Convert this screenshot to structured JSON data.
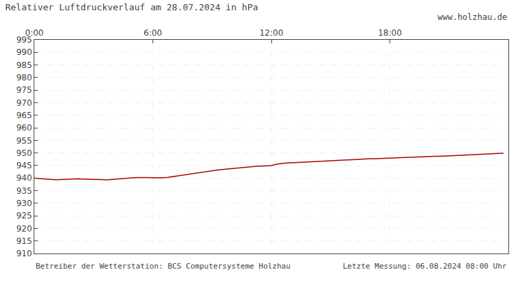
{
  "chart_data": {
    "type": "line",
    "title": "Relativer Luftdruckverlauf am 28.07.2024 in hPa",
    "annotations": [
      "www.holzhau.de",
      "Betreiber der Wetterstation: BCS Computersysteme Holzhau",
      "Letzte Messung: 06.08.2024 08:00 Uhr"
    ],
    "x": [
      0.0,
      0.25,
      0.5,
      0.75,
      1.0,
      1.25,
      1.5,
      1.75,
      2.0,
      2.25,
      2.5,
      2.75,
      3.0,
      3.25,
      3.5,
      3.75,
      4.0,
      4.25,
      4.5,
      4.75,
      5.0,
      5.25,
      5.5,
      5.75,
      6.0,
      6.25,
      6.5,
      6.75,
      7.0,
      7.25,
      7.5,
      7.75,
      8.0,
      8.25,
      8.5,
      8.75,
      9.0,
      9.25,
      9.5,
      9.75,
      10.0,
      10.25,
      10.5,
      10.75,
      11.0,
      11.25,
      11.5,
      11.75,
      12.0,
      12.25,
      12.5,
      12.75,
      13.0,
      13.25,
      13.5,
      13.75,
      14.0,
      14.25,
      14.5,
      14.75,
      15.0,
      15.25,
      15.5,
      15.75,
      16.0,
      16.25,
      16.5,
      16.75,
      17.0,
      17.25,
      17.5,
      17.75,
      18.0,
      18.25,
      18.5,
      18.75,
      19.0,
      19.25,
      19.5,
      19.75,
      20.0,
      20.25,
      20.5,
      20.75,
      21.0,
      21.25,
      21.5,
      21.75,
      22.0,
      22.25,
      22.5,
      22.75,
      23.0,
      23.25,
      23.5,
      23.75
    ],
    "series": [
      {
        "color": "#aa0000",
        "values": [
          940.0,
          939.8,
          939.6,
          939.5,
          939.4,
          939.4,
          939.5,
          939.6,
          939.7,
          939.7,
          939.6,
          939.5,
          939.4,
          939.3,
          939.2,
          939.3,
          939.5,
          939.7,
          939.9,
          940.0,
          940.1,
          940.2,
          940.3,
          940.2,
          940.1,
          940.0,
          940.1,
          940.3,
          940.6,
          941.0,
          941.3,
          941.5,
          941.7,
          942.0,
          942.3,
          942.6,
          942.9,
          943.2,
          943.4,
          943.6,
          943.8,
          944.0,
          944.2,
          944.4,
          944.6,
          944.7,
          944.8,
          944.9,
          945.0,
          945.5,
          945.8,
          946.0,
          946.1,
          946.2,
          946.3,
          946.4,
          946.5,
          946.6,
          946.7,
          946.8,
          947.0,
          947.1,
          947.2,
          947.3,
          947.4,
          947.5,
          947.5,
          947.6,
          947.7,
          947.7,
          947.8,
          947.8,
          947.9,
          947.9,
          948.0,
          948.1,
          948.2,
          948.3,
          948.4,
          948.5,
          948.6,
          948.7,
          948.7,
          948.8,
          948.9,
          949.0,
          949.1,
          949.2,
          949.3,
          949.4,
          949.5,
          949.5,
          949.6,
          949.7,
          949.8,
          949.9
        ]
      }
    ],
    "xlim": [
      0,
      24
    ],
    "xticks": [
      {
        "value": 0,
        "label": "0:00"
      },
      {
        "value": 6,
        "label": "6:00"
      },
      {
        "value": 12,
        "label": "12:00"
      },
      {
        "value": 18,
        "label": "18:00"
      }
    ],
    "ylim": [
      910,
      995
    ],
    "yticks": [
      910,
      915,
      920,
      925,
      930,
      935,
      940,
      945,
      950,
      955,
      960,
      965,
      970,
      975,
      980,
      985,
      990,
      995
    ],
    "grid": true
  }
}
